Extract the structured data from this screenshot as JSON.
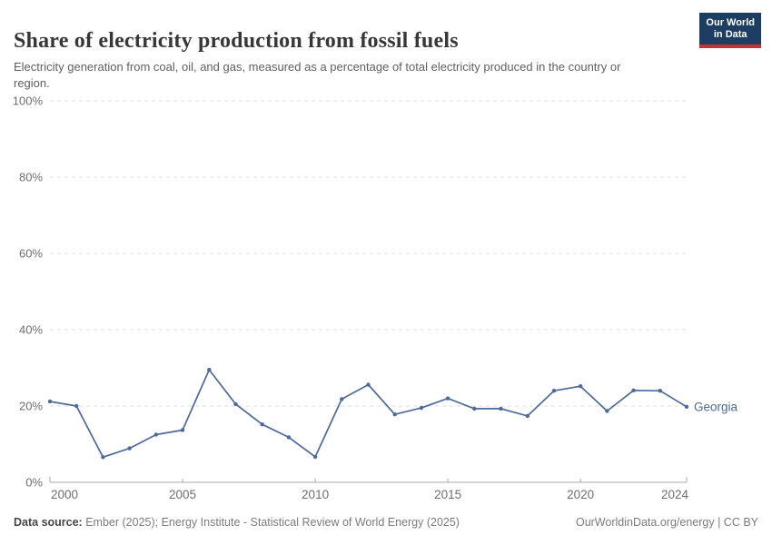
{
  "header": {
    "title": "Share of electricity production from fossil fuels",
    "subtitle": "Electricity generation from coal, oil, and gas, measured as a percentage of total electricity produced in the country or region.",
    "logo": {
      "line1": "Our World",
      "line2": "in Data"
    }
  },
  "footer": {
    "source_label": "Data source:",
    "source_text": " Ember (2025); Energy Institute - Statistical Review of World Energy (2025)",
    "site_link": "OurWorldinData.org/energy",
    "license": " | CC BY"
  },
  "colors": {
    "series": "#4c6a9c",
    "grid": "#dcdcdc",
    "axis": "#a8a8a8",
    "tick_text": "#6e6e6e",
    "logo_bg": "#1d3d63",
    "logo_bar": "#c9302f"
  },
  "chart_data": {
    "type": "line",
    "title": "Share of electricity production from fossil fuels",
    "xlabel": "",
    "ylabel": "",
    "x": [
      2000,
      2001,
      2002,
      2003,
      2004,
      2005,
      2006,
      2007,
      2008,
      2009,
      2010,
      2011,
      2012,
      2013,
      2014,
      2015,
      2016,
      2017,
      2018,
      2019,
      2020,
      2021,
      2022,
      2023,
      2024
    ],
    "series": [
      {
        "name": "Georgia",
        "color": "#4c6a9c",
        "values": [
          21.2,
          20.0,
          6.6,
          8.9,
          12.5,
          13.7,
          29.5,
          20.5,
          15.2,
          11.8,
          6.7,
          21.8,
          25.6,
          17.8,
          19.5,
          22.0,
          19.3,
          19.3,
          17.4,
          24.0,
          25.2,
          18.7,
          24.1,
          24.0,
          19.8
        ]
      }
    ],
    "xlim": [
      2000,
      2024
    ],
    "ylim": [
      0,
      100
    ],
    "yticks": [
      0,
      20,
      40,
      60,
      80,
      100
    ],
    "ytick_suffix": "%",
    "xticks": [
      2000,
      2005,
      2010,
      2015,
      2020,
      2024
    ],
    "grid": "horizontal-dashed",
    "legend_position": "end-of-line-label",
    "entity_label": "Georgia"
  }
}
